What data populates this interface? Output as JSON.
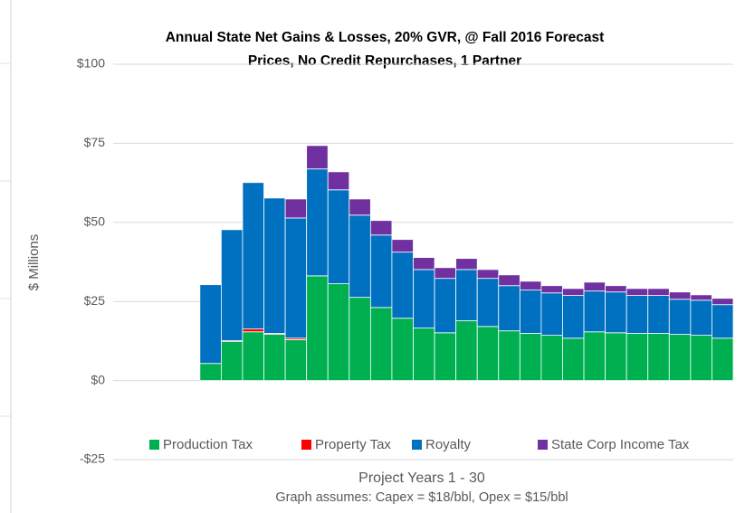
{
  "chart_data": {
    "type": "stacked-bar",
    "title": [
      "Annual State Net Gains & Losses, 20% GVR, @ Fall 2016 Forecast",
      "Prices, No Credit Repurchases, 1 Partner"
    ],
    "y_label": "$ Millions",
    "x_label": "Project Years 1 - 30",
    "note": "Graph assumes:  Capex = $18/bbl, Opex = $15/bbl",
    "categories": [
      null,
      null,
      null,
      null,
      null,
      null,
      null,
      null,
      null,
      null,
      null,
      null,
      null,
      null,
      null,
      null,
      null,
      null,
      null,
      null,
      null,
      null,
      null,
      null,
      null,
      null,
      null,
      null,
      null,
      null
    ],
    "series": [
      {
        "name": "Production Tax",
        "color": "#00b050",
        "values": [
          0,
          0,
          0,
          0,
          0,
          5.4,
          12.3,
          15.4,
          14.6,
          12.9,
          33.1,
          30.6,
          26.3,
          23.1,
          19.7,
          16.6,
          15.1,
          18.9,
          17.1,
          15.7,
          14.9,
          14.3,
          13.4,
          15.4,
          15.1,
          14.9,
          14.9,
          14.6,
          14.3,
          13.4
        ]
      },
      {
        "name": "Property Tax",
        "color": "#ff0000",
        "values": [
          0,
          0,
          0,
          0,
          0,
          0,
          0.3,
          0.9,
          0.3,
          0.5,
          0,
          0,
          0,
          0,
          0,
          0,
          0,
          0,
          0,
          0,
          0,
          0,
          0,
          0,
          0,
          0,
          0,
          0,
          0,
          0
        ]
      },
      {
        "name": "Royalty",
        "color": "#0070c0",
        "values": [
          0,
          0,
          0,
          0,
          0,
          24.9,
          35.1,
          46.3,
          42.8,
          38,
          33.8,
          29.7,
          26,
          22.9,
          20.9,
          18.5,
          17.2,
          16.2,
          15.2,
          14.3,
          13.7,
          13.4,
          13.5,
          12.9,
          12.9,
          12,
          12,
          11.1,
          11.1,
          10.6
        ]
      },
      {
        "name": "State Corp Income Tax",
        "color": "#7030a0",
        "values": [
          0,
          0,
          0,
          0,
          0,
          0,
          0,
          0,
          0,
          6,
          7.4,
          5.7,
          5.1,
          4.6,
          4,
          3.8,
          3.4,
          3.5,
          2.8,
          3.4,
          2.8,
          2.3,
          2.2,
          2.8,
          2,
          2.2,
          2.2,
          2.3,
          1.7,
          2
        ]
      }
    ],
    "ylim": [
      -25,
      100
    ],
    "yticks": [
      {
        "value": -25,
        "label": "-$25"
      },
      {
        "value": 0,
        "label": "$0"
      },
      {
        "value": 25,
        "label": "$25"
      },
      {
        "value": 50,
        "label": "$50"
      },
      {
        "value": 75,
        "label": "$75"
      },
      {
        "value": 100,
        "label": "$100"
      }
    ],
    "grid": true
  }
}
